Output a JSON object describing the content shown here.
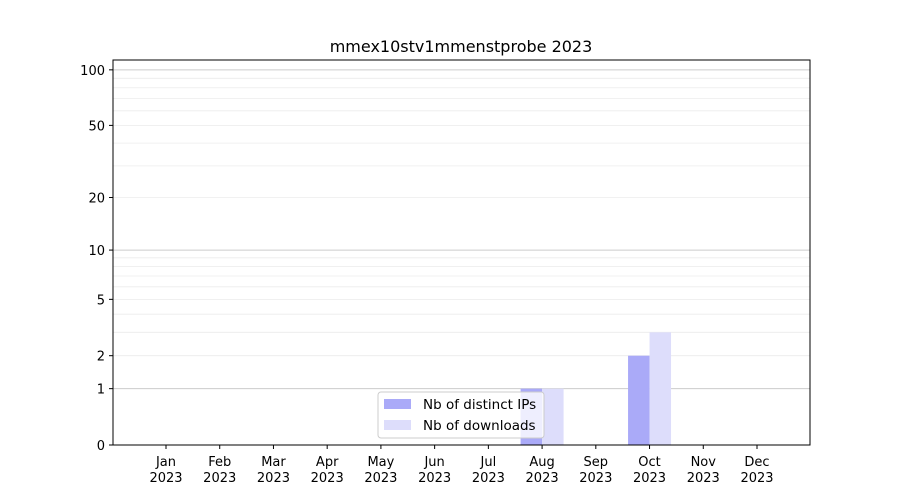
{
  "chart_data": {
    "type": "bar",
    "title": "mmex10stv1mmenstprobe 2023",
    "xlabel": "",
    "ylabel": "",
    "yscale": "log(1+y)",
    "ylim": [
      0,
      113
    ],
    "grid": true,
    "legend_position": "lower-center",
    "categories": [
      "Jan\n2023",
      "Feb\n2023",
      "Mar\n2023",
      "Apr\n2023",
      "May\n2023",
      "Jun\n2023",
      "Jul\n2023",
      "Aug\n2023",
      "Sep\n2023",
      "Oct\n2023",
      "Nov\n2023",
      "Dec\n2023"
    ],
    "category_months": [
      "Jan",
      "Feb",
      "Mar",
      "Apr",
      "May",
      "Jun",
      "Jul",
      "Aug",
      "Sep",
      "Oct",
      "Nov",
      "Dec"
    ],
    "category_years": [
      "2023",
      "2023",
      "2023",
      "2023",
      "2023",
      "2023",
      "2023",
      "2023",
      "2023",
      "2023",
      "2023",
      "2023"
    ],
    "yticks": [
      0,
      1,
      2,
      5,
      10,
      20,
      50,
      100
    ],
    "ytick_labels": [
      "0",
      "1",
      "2",
      "5",
      "10",
      "20",
      "50",
      "100"
    ],
    "series": [
      {
        "name": "Nb of distinct IPs",
        "color": "#aaaaf8",
        "values": [
          0,
          0,
          0,
          0,
          0,
          0,
          0,
          1,
          0,
          2,
          0,
          0
        ]
      },
      {
        "name": "Nb of downloads",
        "color": "#ddddfb",
        "values": [
          0,
          0,
          0,
          0,
          0,
          0,
          0,
          1,
          0,
          3,
          0,
          0
        ]
      }
    ]
  }
}
